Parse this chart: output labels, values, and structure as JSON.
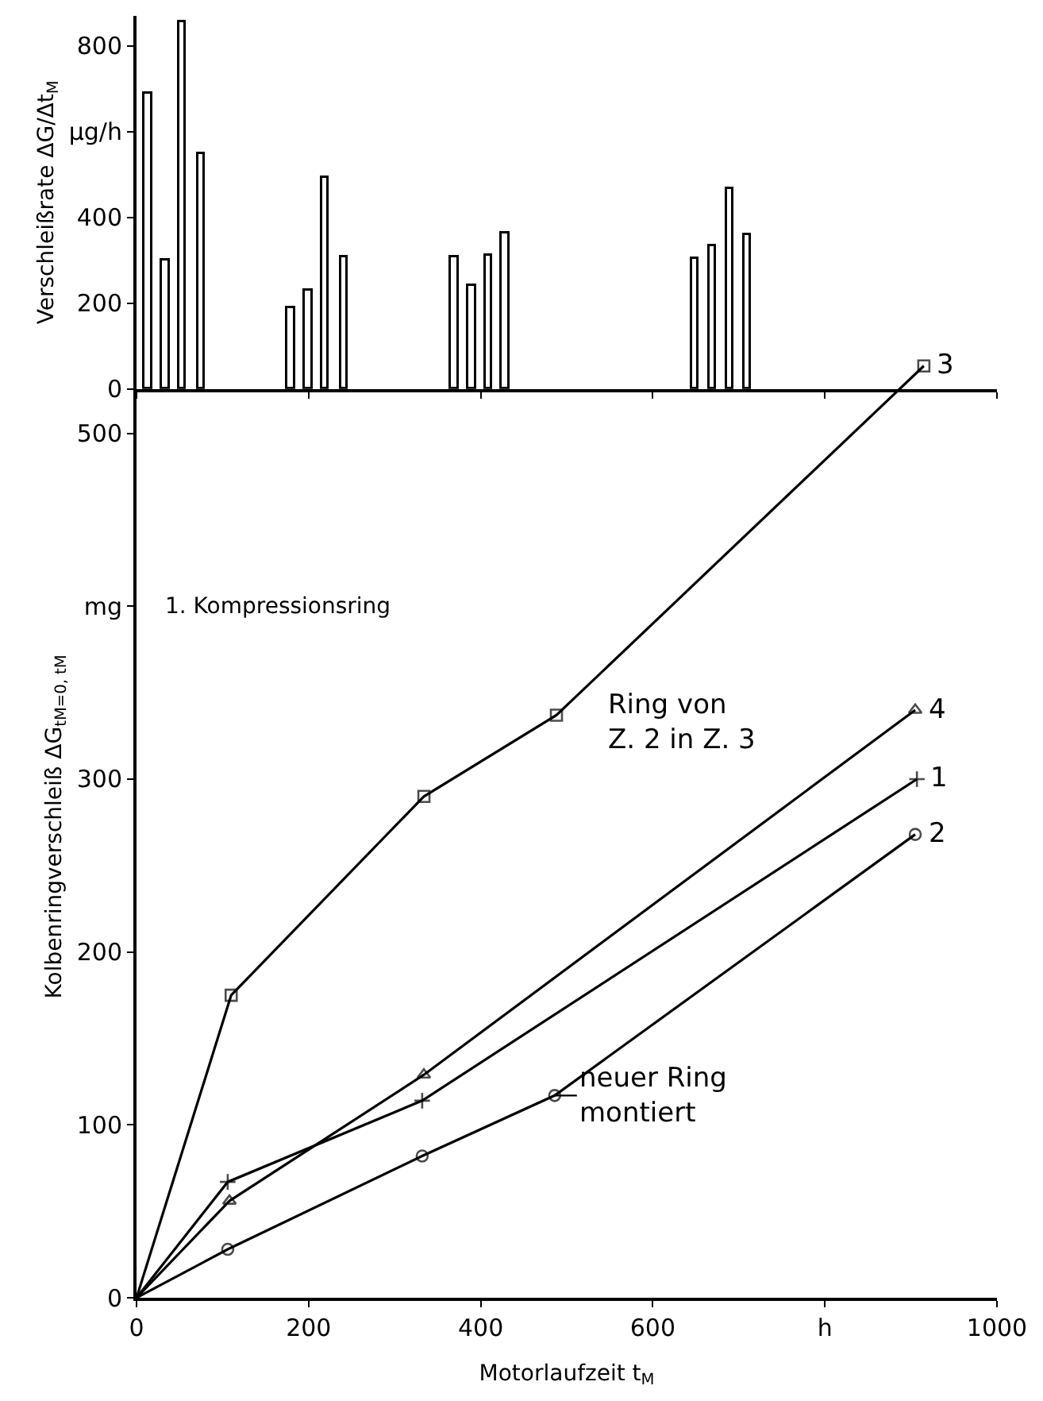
{
  "chart_data": [
    {
      "type": "bar",
      "x": [
        14,
        34,
        54,
        76,
        180,
        200,
        220,
        242,
        370,
        390,
        410,
        429,
        650,
        670,
        690,
        710
      ],
      "values": [
        690,
        300,
        855,
        547,
        190,
        228,
        492,
        308,
        308,
        242,
        312,
        363,
        305,
        334,
        466,
        360
      ],
      "color": "#ffffff",
      "ylabel": "Verschleißrate ΔG/Δt$_{M}$",
      "xlim": [
        0,
        1000
      ],
      "xticks": [
        0,
        200,
        400,
        600,
        800,
        1000
      ],
      "ylim": [
        0,
        870
      ],
      "yticks": [
        0,
        200,
        400,
        {
          "value": 600,
          "label": "μg/h"
        },
        800
      ],
      "tick_labels": "y",
      "legend": false
    },
    {
      "type": "line",
      "xlabel": "Motorlaufzeit t$_{M}$",
      "ylabel": "Kolbenringverschleiß ΔG$_{tM=0, tM}$",
      "xlim": [
        0,
        1000
      ],
      "xticks": [
        0,
        200,
        400,
        600,
        {
          "value": 800,
          "label": "h"
        },
        1000
      ],
      "ylim": [
        0,
        545
      ],
      "yticks": [
        0,
        100,
        200,
        300,
        {
          "value": 400,
          "label": "mg"
        },
        500
      ],
      "legend": false,
      "series": [
        {
          "name": "1",
          "color": "#000000",
          "marker": "cross",
          "x": [
            0,
            106,
            332,
            907
          ],
          "values": [
            0,
            67,
            114,
            300
          ]
        },
        {
          "name": "2",
          "color": "#000000",
          "marker": "circle",
          "x": [
            0,
            106,
            332,
            486,
            905
          ],
          "values": [
            0,
            28,
            82,
            117,
            268
          ]
        },
        {
          "name": "3",
          "color": "#000000",
          "marker": "square",
          "x": [
            0,
            110,
            334,
            488,
            915
          ],
          "values": [
            0,
            175,
            290,
            337,
            539
          ]
        },
        {
          "name": "4",
          "color": "#000000",
          "marker": "triangle",
          "x": [
            0,
            108,
            334,
            905
          ],
          "values": [
            0,
            56,
            129,
            340
          ]
        }
      ],
      "annotations": [
        "1. Kompressionsring",
        "Ring von\nZ. 2 in Z. 3",
        {
          "text": "neuer Ring\nmontiert",
          "x": 486,
          "y": 117
        }
      ]
    }
  ]
}
